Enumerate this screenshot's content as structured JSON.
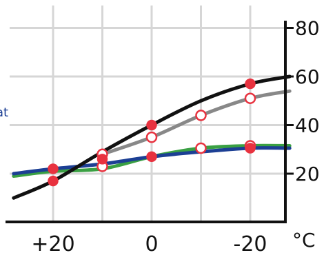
{
  "chart_data": {
    "type": "line",
    "x": [
      20,
      10,
      0,
      -10,
      -20
    ],
    "xticks": [
      "+20",
      "0",
      "-20"
    ],
    "xunit": "°C",
    "yticks": [
      "20",
      "40",
      "60",
      "80"
    ],
    "ylim": [
      0,
      80
    ],
    "grid": true,
    "axis_position": "right",
    "partial_label": "at",
    "series": [
      {
        "color": "#111111",
        "marker": "filled",
        "curve": {
          "x": [
            28,
            20,
            10,
            0,
            -10,
            -20,
            -28
          ],
          "y": [
            10,
            17,
            29,
            40,
            50,
            57,
            60
          ]
        },
        "points": [
          {
            "x": 20,
            "y": 17
          },
          {
            "x": 0,
            "y": 40
          },
          {
            "x": -20,
            "y": 57
          }
        ]
      },
      {
        "color": "#888888",
        "marker": "hollow",
        "curve": {
          "x": [
            10,
            0,
            -10,
            -20,
            -28
          ],
          "y": [
            28,
            35,
            44,
            51,
            54
          ]
        },
        "points": [
          {
            "x": 10,
            "y": 28
          },
          {
            "x": 0,
            "y": 35
          },
          {
            "x": -10,
            "y": 44
          },
          {
            "x": -20,
            "y": 51
          }
        ]
      },
      {
        "color": "#3aa043",
        "marker": "hollow",
        "curve": {
          "x": [
            28,
            20,
            10,
            0,
            -10,
            -20,
            -28
          ],
          "y": [
            19,
            21,
            22,
            27,
            30.5,
            31.5,
            31.5
          ]
        },
        "points": [
          {
            "x": 10,
            "y": 23
          },
          {
            "x": -10,
            "y": 30.5
          },
          {
            "x": -20,
            "y": 31.5
          }
        ]
      },
      {
        "color": "#1c3f94",
        "marker": "filled",
        "curve": {
          "x": [
            28,
            20,
            10,
            0,
            -10,
            -20,
            -28
          ],
          "y": [
            20,
            22,
            24,
            27,
            29,
            30.5,
            30.5
          ]
        },
        "points": [
          {
            "x": 20,
            "y": 22
          },
          {
            "x": 10,
            "y": 26
          },
          {
            "x": 0,
            "y": 27
          },
          {
            "x": -20,
            "y": 30.5
          }
        ]
      }
    ]
  }
}
